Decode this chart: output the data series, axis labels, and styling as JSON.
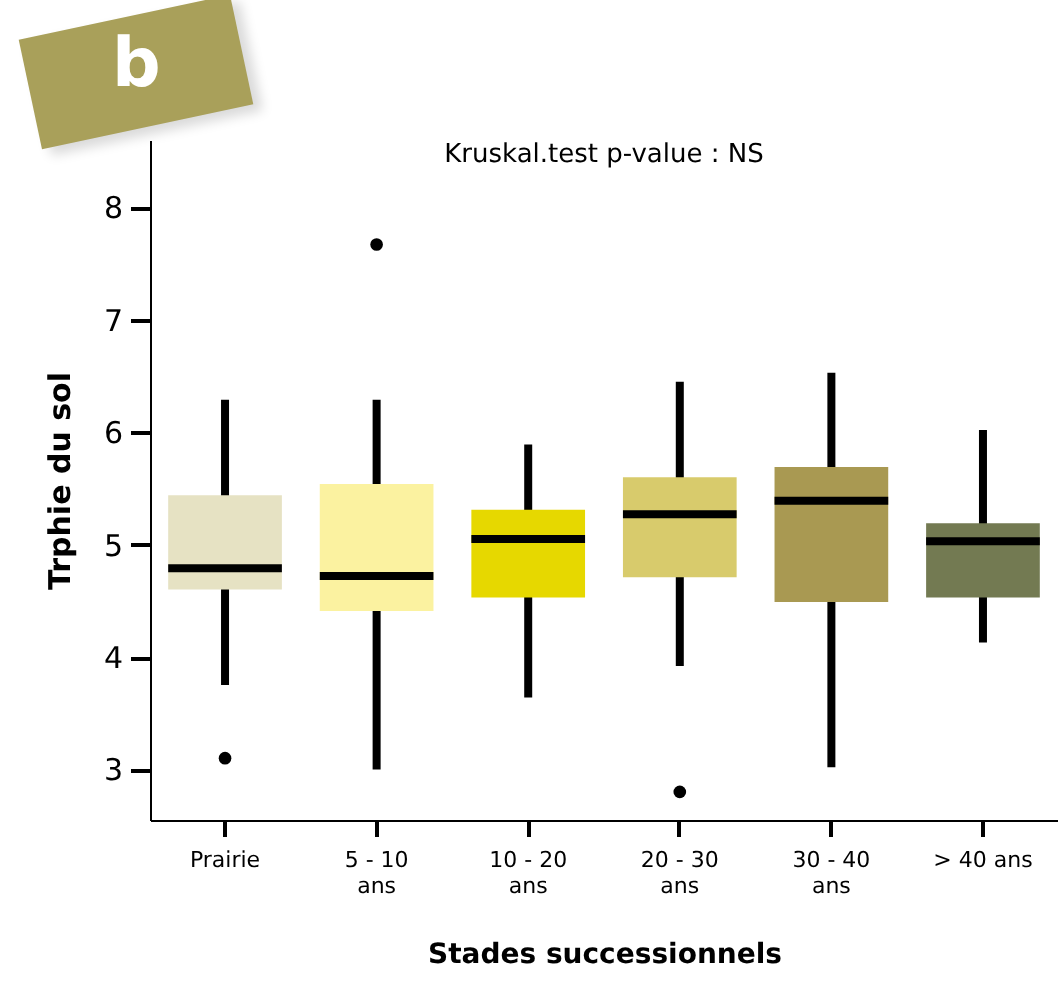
{
  "chart_data": {
    "type": "box",
    "title": "Kruskal.test p-value : NS",
    "xlabel": "Stades successionnels",
    "ylabel": "Trphie du sol",
    "categories": [
      "Prairie",
      "5 - 10 ans",
      "10 - 20 ans",
      "20 - 30 ans",
      "30 - 40 ans",
      "> 40 ans"
    ],
    "colors": [
      "#e6e2c3",
      "#fbf2a0",
      "#e6d800",
      "#d8cb6c",
      "#a99952",
      "#737a52"
    ],
    "boxes": [
      {
        "low": 3.75,
        "q1": 4.6,
        "median": 4.79,
        "q3": 5.44,
        "high": 6.29,
        "outliers": [
          3.1
        ]
      },
      {
        "low": 3.0,
        "q1": 4.41,
        "median": 4.72,
        "q3": 5.54,
        "high": 6.29,
        "outliers": [
          7.67
        ]
      },
      {
        "low": 3.64,
        "q1": 4.53,
        "median": 5.05,
        "q3": 5.31,
        "high": 5.89
      },
      {
        "low": 3.92,
        "q1": 4.71,
        "median": 5.27,
        "q3": 5.6,
        "high": 6.45,
        "outliers": [
          2.8
        ]
      },
      {
        "low": 3.02,
        "q1": 4.49,
        "median": 5.39,
        "q3": 5.69,
        "high": 6.53
      },
      {
        "low": 4.13,
        "q1": 4.53,
        "median": 5.03,
        "q3": 5.19,
        "high": 6.02
      }
    ],
    "ylim": [
      2.55,
      8.6
    ],
    "yticks": [
      3,
      4,
      5,
      6,
      7,
      8
    ],
    "grid": false,
    "legend": false,
    "annotations": [
      "b"
    ]
  }
}
